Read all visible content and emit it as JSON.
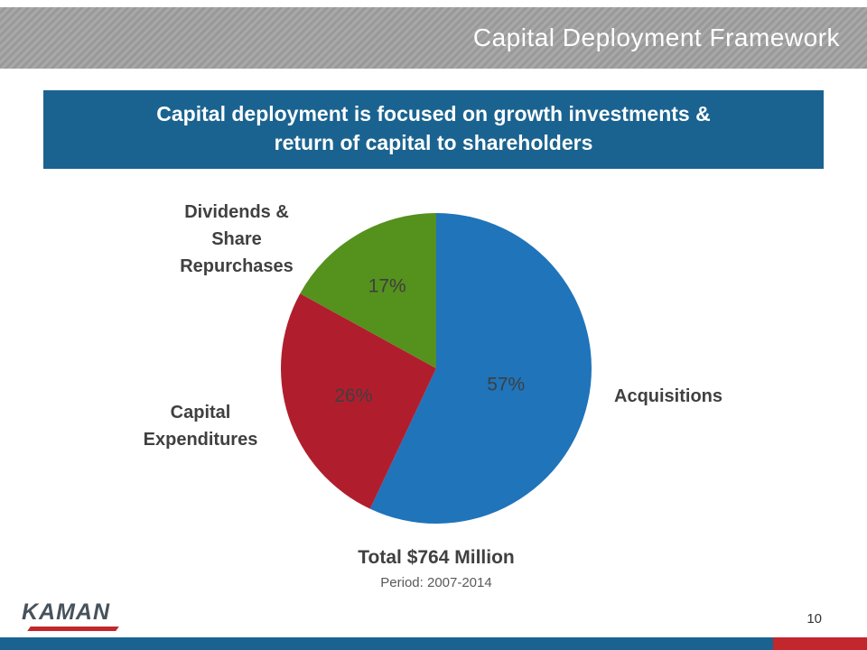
{
  "slide": {
    "title": "Capital Deployment Framework",
    "page_number": "10"
  },
  "banner": {
    "line1": "Capital deployment is focused on growth investments &",
    "line2": "return of capital to shareholders"
  },
  "chart_data": {
    "type": "pie",
    "title": "Total $764 Million",
    "subtitle": "Period: 2007-2014",
    "unit": "percent",
    "start_angle_deg": 0,
    "direction": "clockwise",
    "slices": [
      {
        "label": "Acquisitions",
        "value": 57,
        "display": "57%",
        "color": "#1f74ba"
      },
      {
        "label": "Capital Expenditures",
        "value": 26,
        "display": "26%",
        "color": "#b01e2e"
      },
      {
        "label": "Dividends & Share Repurchases",
        "value": 17,
        "display": "17%",
        "color": "#55911d"
      }
    ],
    "label_radius": [
      0.46,
      0.56,
      0.62
    ],
    "legend": "none",
    "labels_placement": "outside-callouts"
  },
  "footer": {
    "logo_text": "KAMAN"
  },
  "colors": {
    "banner_blue": "#1a6390",
    "header_stripe_gray": "#a0a0a0",
    "footer_blue": "#1a6390",
    "footer_red": "#c1272d",
    "pie_blue": "#1f74ba",
    "pie_red": "#b01e2e",
    "pie_green": "#55911d",
    "text_dark": "#404040",
    "title_white": "#ffffff"
  }
}
